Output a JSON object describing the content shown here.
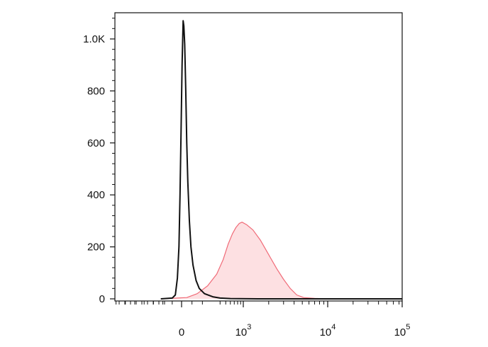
{
  "chart_data": {
    "type": "area",
    "title": "",
    "xlabel": "",
    "ylabel": "",
    "x_scale": "biexponential",
    "ylim": [
      0,
      1100
    ],
    "y_ticks": [
      {
        "value": 0,
        "label": "0"
      },
      {
        "value": 200,
        "label": "200"
      },
      {
        "value": 400,
        "label": "400"
      },
      {
        "value": 600,
        "label": "600"
      },
      {
        "value": 800,
        "label": "800"
      },
      {
        "value": 1000,
        "label": "1.0K"
      }
    ],
    "x_ticks": [
      {
        "value": 0,
        "base": "0",
        "exp": ""
      },
      {
        "value": 1000,
        "base": "10",
        "exp": "3"
      },
      {
        "value": 10000,
        "base": "10",
        "exp": "4"
      },
      {
        "value": 100000,
        "base": "10",
        "exp": "5"
      }
    ],
    "series": [
      {
        "color": "#f06b78",
        "fill": "#fde0e2",
        "filled": true,
        "points": [
          [
            -200,
            0
          ],
          [
            50,
            5
          ],
          [
            150,
            20
          ],
          [
            250,
            50
          ],
          [
            350,
            95
          ],
          [
            450,
            150
          ],
          [
            550,
            210
          ],
          [
            650,
            250
          ],
          [
            750,
            275
          ],
          [
            850,
            290
          ],
          [
            950,
            295
          ],
          [
            1100,
            285
          ],
          [
            1300,
            265
          ],
          [
            1600,
            225
          ],
          [
            2000,
            170
          ],
          [
            2500,
            115
          ],
          [
            3000,
            75
          ],
          [
            3600,
            40
          ],
          [
            4300,
            15
          ],
          [
            5200,
            5
          ],
          [
            7000,
            2
          ],
          [
            10000,
            0
          ],
          [
            100000,
            0
          ]
        ]
      },
      {
        "color": "#111111",
        "fill": "none",
        "filled": false,
        "points": [
          [
            -200,
            0
          ],
          [
            -90,
            3
          ],
          [
            -60,
            15
          ],
          [
            -40,
            80
          ],
          [
            -25,
            200
          ],
          [
            -15,
            400
          ],
          [
            -5,
            650
          ],
          [
            5,
            900
          ],
          [
            15,
            1070
          ],
          [
            22,
            1050
          ],
          [
            30,
            980
          ],
          [
            40,
            800
          ],
          [
            50,
            600
          ],
          [
            60,
            450
          ],
          [
            75,
            300
          ],
          [
            90,
            200
          ],
          [
            110,
            130
          ],
          [
            140,
            70
          ],
          [
            170,
            40
          ],
          [
            220,
            20
          ],
          [
            300,
            8
          ],
          [
            400,
            3
          ],
          [
            600,
            1
          ],
          [
            1500,
            0
          ],
          [
            100000,
            0
          ]
        ]
      }
    ]
  }
}
